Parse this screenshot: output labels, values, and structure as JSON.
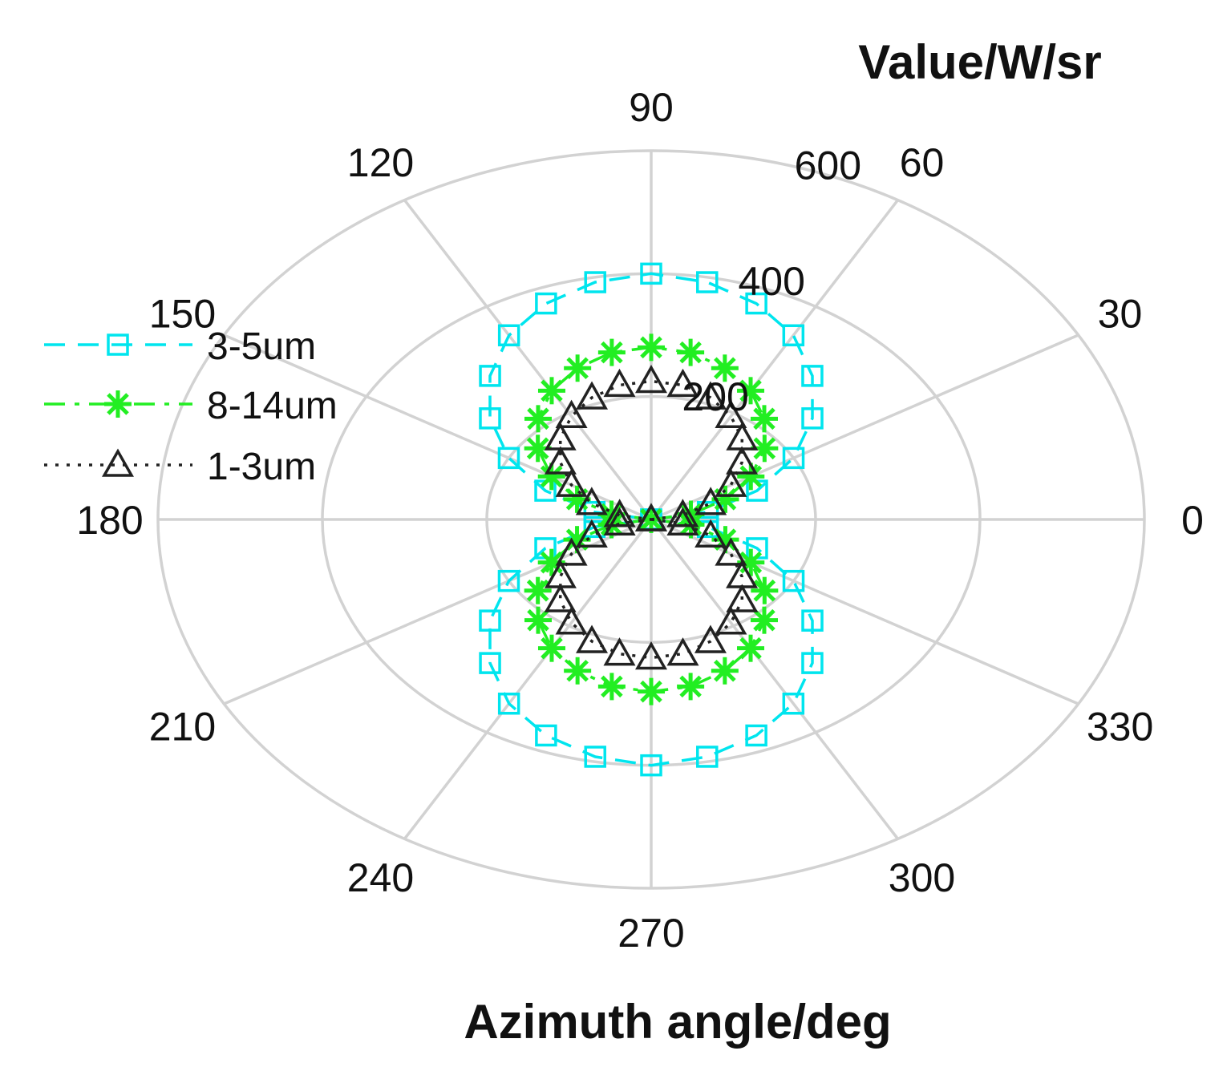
{
  "chart_data": {
    "type": "polar",
    "theta_label": "Azimuth angle/deg",
    "r_label": "Value/W/sr",
    "theta_ticks": [
      "0",
      "30",
      "60",
      "90",
      "120",
      "150",
      "180",
      "210",
      "240",
      "270",
      "300",
      "330"
    ],
    "r_ticks": [
      "200",
      "400",
      "600"
    ],
    "rlim": [
      0,
      600
    ],
    "grid": true,
    "legend_position": "left",
    "series": [
      {
        "name": "3-5um",
        "color": "#00e5ee",
        "line_style": "dashed",
        "marker": "square",
        "theta": [
          0,
          10,
          20,
          30,
          40,
          50,
          60,
          70,
          80,
          90,
          100,
          110,
          120,
          130,
          140,
          150,
          160,
          170,
          180,
          190,
          200,
          210,
          220,
          230,
          240,
          250,
          260,
          270,
          280,
          290,
          300,
          310,
          320,
          330,
          340,
          350
        ],
        "r": [
          0,
          70,
          137,
          200,
          256,
          305,
          346,
          374,
          392,
          400,
          392,
          374,
          346,
          305,
          256,
          200,
          137,
          70,
          0,
          70,
          137,
          200,
          256,
          305,
          346,
          374,
          392,
          400,
          392,
          374,
          346,
          305,
          256,
          200,
          137,
          70
        ]
      },
      {
        "name": "8-14um",
        "color": "#22ee22",
        "line_style": "dashdot",
        "marker": "star",
        "theta": [
          0,
          10,
          20,
          30,
          40,
          50,
          60,
          70,
          80,
          90,
          100,
          110,
          120,
          130,
          140,
          150,
          160,
          170,
          180,
          190,
          200,
          210,
          220,
          230,
          240,
          250,
          260,
          270,
          280,
          290,
          300,
          310,
          320,
          330,
          340,
          350
        ],
        "r": [
          0,
          49,
          96,
          140,
          180,
          214,
          242,
          262,
          276,
          280,
          276,
          262,
          242,
          214,
          180,
          140,
          96,
          49,
          0,
          49,
          96,
          140,
          180,
          214,
          242,
          262,
          276,
          280,
          276,
          262,
          242,
          214,
          180,
          140,
          96,
          49
        ]
      },
      {
        "name": "1-3um",
        "color": "#222222",
        "line_style": "dotted",
        "marker": "triangle",
        "theta": [
          0,
          10,
          20,
          30,
          40,
          50,
          60,
          70,
          80,
          90,
          100,
          110,
          120,
          130,
          140,
          150,
          160,
          170,
          180,
          190,
          200,
          210,
          220,
          230,
          240,
          250,
          260,
          270,
          280,
          290,
          300,
          310,
          320,
          330,
          340,
          350
        ],
        "r": [
          0,
          39,
          77,
          112,
          144,
          172,
          194,
          211,
          222,
          225,
          222,
          211,
          194,
          172,
          144,
          112,
          77,
          39,
          0,
          39,
          77,
          112,
          144,
          172,
          194,
          211,
          222,
          225,
          222,
          211,
          194,
          172,
          144,
          112,
          77,
          39
        ]
      }
    ]
  }
}
